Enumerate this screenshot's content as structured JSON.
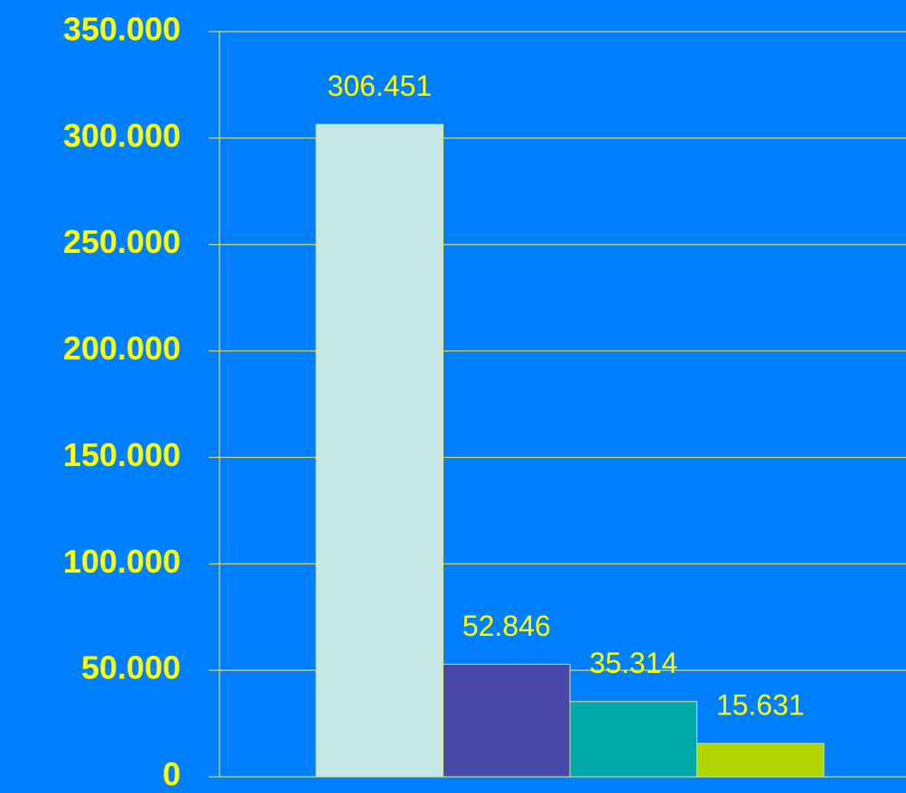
{
  "chart_data": {
    "type": "bar",
    "categories": [
      null,
      null,
      null,
      null
    ],
    "values": [
      306451,
      52846,
      35314,
      15631
    ],
    "value_labels": [
      "306.451",
      "52.846",
      "35.314",
      "15.631"
    ],
    "colors": [
      "#c4e6e6",
      "#4848a8",
      "#00a8a8",
      "#b0d400"
    ],
    "ylim": [
      0,
      350000
    ],
    "yticks": [
      {
        "value": 0,
        "label": "0"
      },
      {
        "value": 50000,
        "label": "50.000"
      },
      {
        "value": 100000,
        "label": "100.000"
      },
      {
        "value": 150000,
        "label": "150.000"
      },
      {
        "value": 200000,
        "label": "200.000"
      },
      {
        "value": 250000,
        "label": "250.000"
      },
      {
        "value": 300000,
        "label": "300.000"
      },
      {
        "value": 350000,
        "label": "350.000"
      }
    ],
    "grid": true
  }
}
